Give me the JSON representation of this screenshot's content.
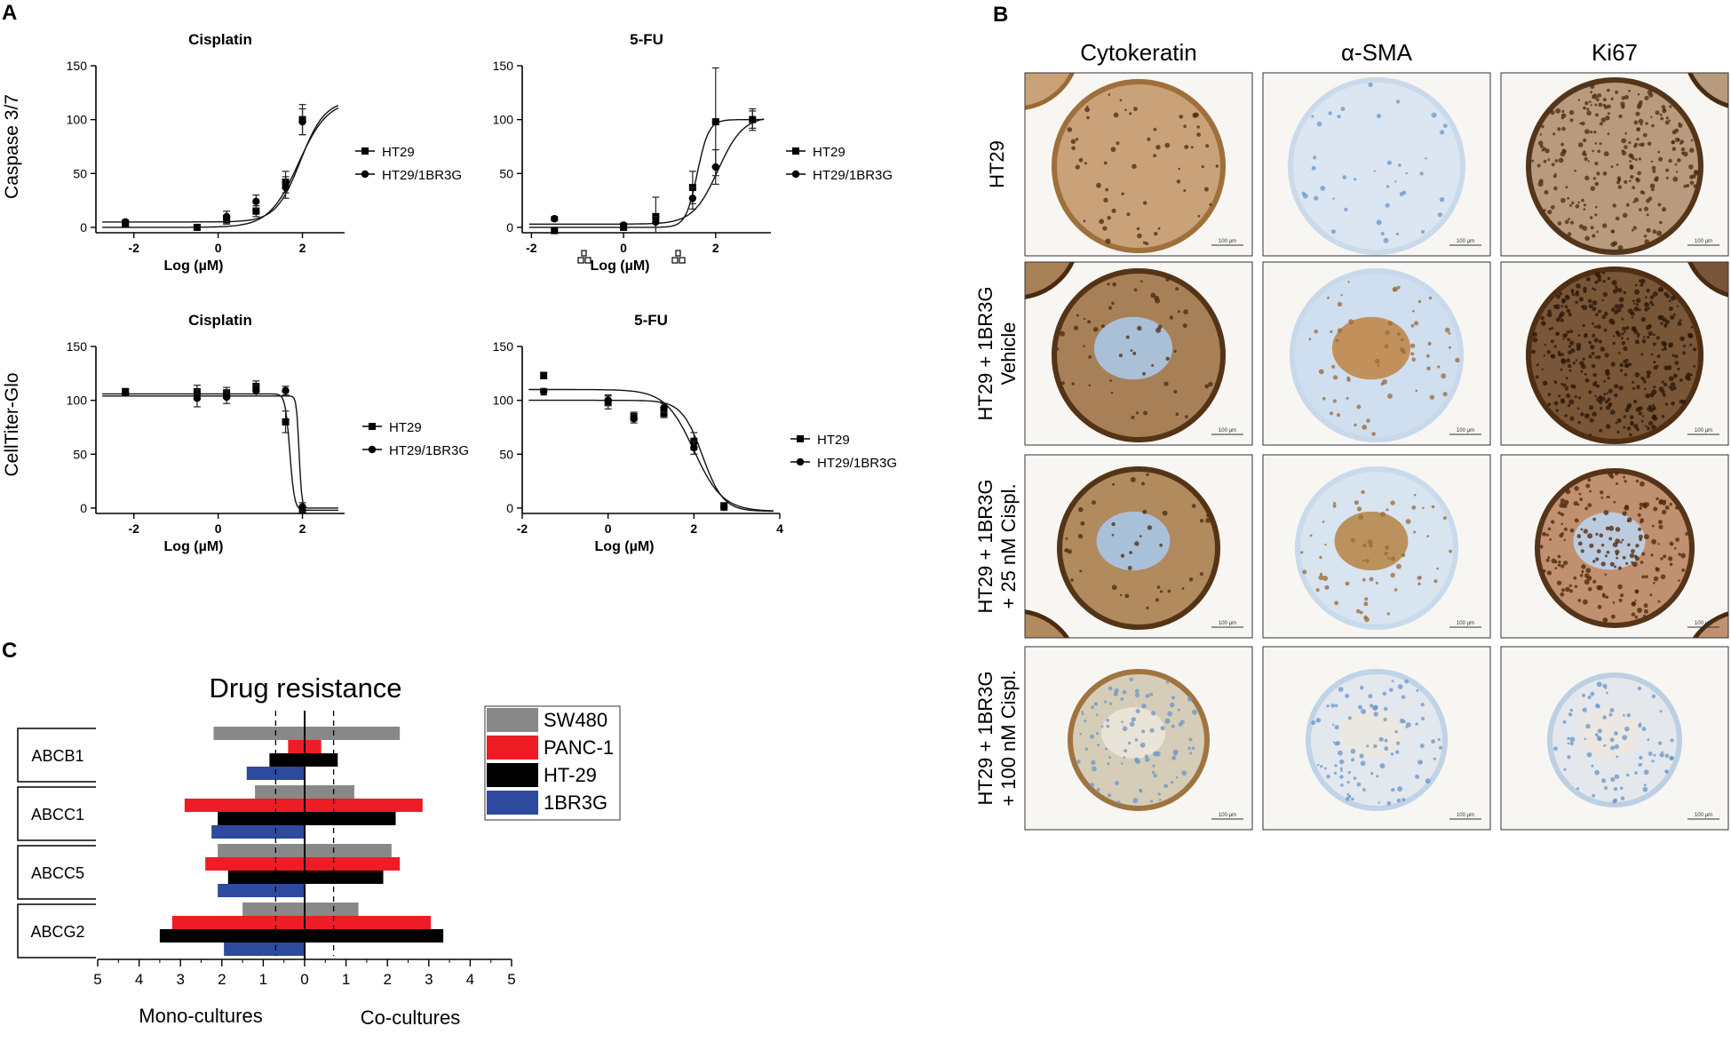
{
  "panels": {
    "A": {
      "label": "A",
      "row_labels": [
        "Caspase 3/7",
        "CellTiter-Glo"
      ]
    },
    "B": {
      "label": "B"
    },
    "C": {
      "label": "C"
    }
  },
  "chart_data": [
    {
      "id": "a1",
      "type": "scatter",
      "title": "Cisplatin",
      "ylabel": "Caspase 3/7",
      "xlabel": "Log (µM)",
      "xlim": [
        -2.9,
        3.0
      ],
      "ylim": [
        -5,
        150
      ],
      "xticks": [
        -2,
        0,
        2
      ],
      "yticks": [
        0,
        50,
        100,
        150
      ],
      "legend": [
        "HT29",
        "HT29/1BR3G"
      ],
      "series": [
        {
          "name": "HT29",
          "marker": "square",
          "points": [
            [
              -2.2,
              3
            ],
            [
              -0.5,
              0
            ],
            [
              0.2,
              7
            ],
            [
              0.9,
              15
            ],
            [
              1.6,
              42
            ],
            [
              2.0,
              100
            ]
          ],
          "err": [
            2,
            2,
            4,
            5,
            10,
            14
          ],
          "curve": {
            "bottom": 0,
            "top": 118,
            "logEC50": 1.9,
            "hill": 1.25
          }
        },
        {
          "name": "HT29/1BR3G",
          "marker": "circle",
          "points": [
            [
              -2.2,
              5
            ],
            [
              0.2,
              10
            ],
            [
              0.9,
              24
            ],
            [
              1.6,
              37
            ],
            [
              2.0,
              98
            ]
          ],
          "err": [
            2,
            5,
            6,
            10,
            12
          ],
          "curve": {
            "bottom": 5,
            "top": 118,
            "logEC50": 1.95,
            "hill": 1.5
          }
        }
      ]
    },
    {
      "id": "a2",
      "type": "scatter",
      "title": "5-FU",
      "xlabel": "Log (µM)",
      "xlim": [
        -2.2,
        3.2
      ],
      "ylim": [
        -5,
        150
      ],
      "xticks": [
        -2,
        0,
        2
      ],
      "yticks": [
        0,
        50,
        100,
        150
      ],
      "legend": [
        "HT29",
        "HT29/1BR3G"
      ],
      "series": [
        {
          "name": "HT29",
          "marker": "square",
          "points": [
            [
              -1.5,
              -3
            ],
            [
              0,
              0
            ],
            [
              0.7,
              10
            ],
            [
              1.5,
              37
            ],
            [
              2.0,
              98
            ],
            [
              2.8,
              100
            ]
          ],
          "err": [
            1,
            2,
            18,
            15,
            50,
            8
          ],
          "curve": {
            "bottom": 0,
            "top": 100,
            "logEC50": 1.6,
            "hill": 3.5
          }
        },
        {
          "name": "HT29/1BR3G",
          "marker": "circle",
          "points": [
            [
              -1.5,
              8
            ],
            [
              0,
              2
            ],
            [
              0.7,
              5
            ],
            [
              1.5,
              27
            ],
            [
              2.0,
              56
            ],
            [
              2.8,
              100
            ]
          ],
          "err": [
            2,
            2,
            5,
            10,
            16,
            10
          ],
          "curve": {
            "bottom": 3,
            "top": 103,
            "logEC50": 2.05,
            "hill": 1.6
          }
        }
      ]
    },
    {
      "id": "a3",
      "type": "scatter",
      "title": "Cisplatin",
      "ylabel": "CellTiter-Glo",
      "xlabel": "Log (µM)",
      "xlim": [
        -2.9,
        3.0
      ],
      "ylim": [
        -5,
        150
      ],
      "xticks": [
        -2,
        0,
        2
      ],
      "yticks": [
        0,
        50,
        100,
        150
      ],
      "legend": [
        "HT29",
        "HT29/1BR3G"
      ],
      "series": [
        {
          "name": "HT29",
          "marker": "square",
          "points": [
            [
              -2.2,
              108
            ],
            [
              -0.5,
              108
            ],
            [
              0.2,
              107
            ],
            [
              0.9,
              113
            ],
            [
              1.6,
              80
            ],
            [
              2.0,
              -2
            ]
          ],
          "err": [
            3,
            6,
            5,
            5,
            10,
            4
          ],
          "curve": {
            "bottom": -2,
            "top": 106,
            "logEC50": 1.7,
            "hill": -8
          }
        },
        {
          "name": "HT29/1BR3G",
          "marker": "circle",
          "points": [
            [
              -2.2,
              107
            ],
            [
              -0.5,
              102
            ],
            [
              0.2,
              103
            ],
            [
              0.9,
              109
            ],
            [
              1.6,
              109
            ],
            [
              2.0,
              1
            ]
          ],
          "err": [
            3,
            8,
            6,
            5,
            4,
            4
          ],
          "curve": {
            "bottom": 0,
            "top": 104,
            "logEC50": 1.92,
            "hill": -14
          }
        }
      ]
    },
    {
      "id": "a4",
      "type": "scatter",
      "title": "5-FU",
      "xlabel": "Log (µM)",
      "xlim": [
        -2.0,
        4.0
      ],
      "ylim": [
        -5,
        150
      ],
      "xticks": [
        -2,
        0,
        2,
        4
      ],
      "yticks": [
        0,
        50,
        100,
        150
      ],
      "legend": [
        "HT29",
        "HT29/1BR3G"
      ],
      "series": [
        {
          "name": "HT29",
          "marker": "square",
          "points": [
            [
              -1.5,
              123
            ],
            [
              0,
              98
            ],
            [
              0.6,
              85
            ],
            [
              1.3,
              88
            ],
            [
              2.0,
              62
            ],
            [
              2.7,
              2
            ]
          ],
          "err": [
            3,
            6,
            4,
            4,
            8,
            3
          ],
          "curve": {
            "bottom": -3,
            "top": 100,
            "logEC50": 2.2,
            "hill": -1.8
          }
        },
        {
          "name": "HT29/1BR3G",
          "marker": "circle",
          "points": [
            [
              -1.5,
              108
            ],
            [
              0,
              100
            ],
            [
              0.6,
              83
            ],
            [
              1.3,
              93
            ],
            [
              2.0,
              56
            ],
            [
              2.7,
              1
            ]
          ],
          "err": [
            3,
            5,
            4,
            4,
            6,
            3
          ],
          "curve": {
            "bottom": -3,
            "top": 110,
            "logEC50": 2.0,
            "hill": -1.3
          }
        }
      ]
    },
    {
      "id": "c",
      "type": "bar",
      "orientation": "horizontal-diverging",
      "title": "Drug resistance",
      "categories": [
        "ABCB1",
        "ABCC1",
        "ABCC5",
        "ABCG2"
      ],
      "xlim": [
        -5,
        5
      ],
      "xticks": [
        5,
        4,
        3,
        2,
        1,
        0,
        1,
        2,
        3,
        4,
        5
      ],
      "reference_lines": [
        -0.7,
        0.7
      ],
      "xlabel_left": "Mono-cultures",
      "xlabel_right": "Co-cultures",
      "series": [
        {
          "name": "SW480",
          "color": "#888888",
          "ranges": [
            [
              -2.2,
              2.3
            ],
            [
              -1.2,
              1.2
            ],
            [
              -2.1,
              2.1
            ],
            [
              -1.5,
              1.3
            ]
          ]
        },
        {
          "name": "PANC-1",
          "color": "#ee1c25",
          "ranges": [
            [
              -0.4,
              0.4
            ],
            [
              -2.9,
              2.85
            ],
            [
              -2.4,
              2.3
            ],
            [
              -3.2,
              3.05
            ]
          ]
        },
        {
          "name": "HT-29",
          "color": "#000000",
          "ranges": [
            [
              -0.85,
              0.8
            ],
            [
              -2.1,
              2.2
            ],
            [
              -1.85,
              1.9
            ],
            [
              -3.5,
              3.35
            ]
          ]
        },
        {
          "name": "1BR3G",
          "color": "#2e4a9e",
          "ranges": [
            [
              -1.4,
              0
            ],
            [
              -2.25,
              0
            ],
            [
              -2.1,
              0
            ],
            [
              -1.95,
              0
            ]
          ]
        }
      ]
    }
  ],
  "histology": {
    "columns": [
      "Cytokeratin",
      "α-SMA",
      "Ki67"
    ],
    "rows": [
      [
        "HT29"
      ],
      [
        "HT29 + 1BR3G",
        "Vehicle"
      ],
      [
        "HT29 + 1BR3G",
        "+ 25 nM Cispl."
      ],
      [
        "HT29 + 1BR3G",
        "+ 100 nM Cispl."
      ]
    ],
    "scale_bar": "100 µm",
    "colors": {
      "hematoxylin": "#a8c4e0",
      "hematoxylin_dark": "#6b95c8",
      "dab": "#9a6a34",
      "dab_dark": "#4a2a10",
      "background": "#f7f6f3"
    }
  }
}
